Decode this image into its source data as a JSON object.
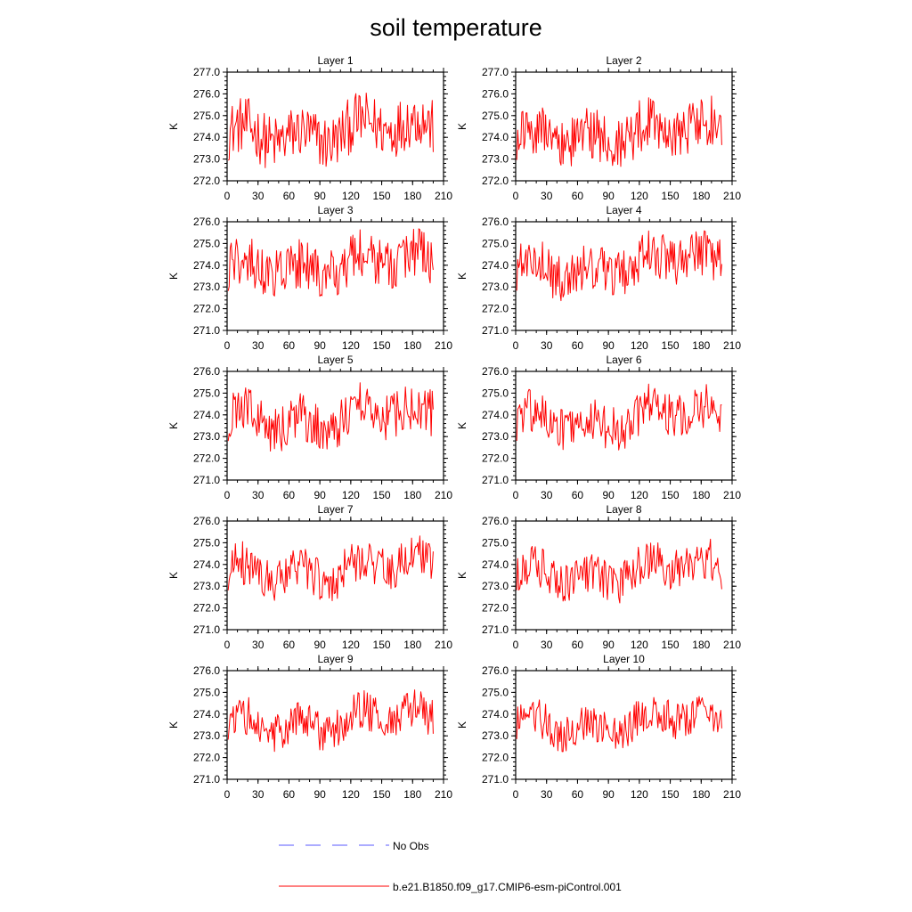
{
  "figure": {
    "title": "soil temperature",
    "legend": [
      {
        "label": "No Obs",
        "color": "#5a5aff",
        "style": "dashed"
      },
      {
        "label": "b.e21.B1850.f09_g17.CMIP6-esm-piControl.001",
        "color": "#ff0000",
        "style": "solid"
      }
    ]
  },
  "chart_data": [
    {
      "type": "line",
      "title": "Layer 1",
      "xlabel": "",
      "ylabel": "K",
      "xlim": [
        0,
        210
      ],
      "ylim": [
        272.0,
        277.0
      ],
      "xticks": [
        "0",
        "30",
        "60",
        "90",
        "120",
        "150",
        "180",
        "210"
      ],
      "yticks": [
        "272.0",
        "273.0",
        "274.0",
        "275.0",
        "276.0",
        "277.0"
      ],
      "series": [
        {
          "name": "b.e21.B1850.f09_g17.CMIP6-esm-piControl.001",
          "color": "#ff0000",
          "base": 273.95,
          "amp": 1.3,
          "trend": 0.6,
          "n": 200
        }
      ]
    },
    {
      "type": "line",
      "title": "Layer 2",
      "xlabel": "",
      "ylabel": "K",
      "xlim": [
        0,
        210
      ],
      "ylim": [
        272.0,
        277.0
      ],
      "xticks": [
        "0",
        "30",
        "60",
        "90",
        "120",
        "150",
        "180",
        "210"
      ],
      "yticks": [
        "272.0",
        "273.0",
        "274.0",
        "275.0",
        "276.0",
        "277.0"
      ],
      "series": [
        {
          "name": "b.e21.B1850.f09_g17.CMIP6-esm-piControl.001",
          "color": "#ff0000",
          "base": 273.9,
          "amp": 1.25,
          "trend": 0.6,
          "n": 200
        }
      ]
    },
    {
      "type": "line",
      "title": "Layer 3",
      "xlabel": "",
      "ylabel": "K",
      "xlim": [
        0,
        210
      ],
      "ylim": [
        271.0,
        276.0
      ],
      "xticks": [
        "0",
        "30",
        "60",
        "90",
        "120",
        "150",
        "180",
        "210"
      ],
      "yticks": [
        "271.0",
        "272.0",
        "273.0",
        "274.0",
        "275.0",
        "276.0"
      ],
      "series": [
        {
          "name": "b.e21.B1850.f09_g17.CMIP6-esm-piControl.001",
          "color": "#ff0000",
          "base": 273.7,
          "amp": 1.2,
          "trend": 0.6,
          "n": 200
        }
      ]
    },
    {
      "type": "line",
      "title": "Layer 4",
      "xlabel": "",
      "ylabel": "K",
      "xlim": [
        0,
        210
      ],
      "ylim": [
        271.0,
        276.0
      ],
      "xticks": [
        "0",
        "30",
        "60",
        "90",
        "120",
        "150",
        "180",
        "210"
      ],
      "yticks": [
        "271.0",
        "272.0",
        "273.0",
        "274.0",
        "275.0",
        "276.0"
      ],
      "series": [
        {
          "name": "b.e21.B1850.f09_g17.CMIP6-esm-piControl.001",
          "color": "#ff0000",
          "base": 273.65,
          "amp": 1.15,
          "trend": 0.6,
          "n": 200
        }
      ]
    },
    {
      "type": "line",
      "title": "Layer 5",
      "xlabel": "",
      "ylabel": "K",
      "xlim": [
        0,
        210
      ],
      "ylim": [
        271.0,
        276.0
      ],
      "xticks": [
        "0",
        "30",
        "60",
        "90",
        "120",
        "150",
        "180",
        "210"
      ],
      "yticks": [
        "271.0",
        "272.0",
        "273.0",
        "274.0",
        "275.0",
        "276.0"
      ],
      "series": [
        {
          "name": "b.e21.B1850.f09_g17.CMIP6-esm-piControl.001",
          "color": "#ff0000",
          "base": 273.55,
          "amp": 1.1,
          "trend": 0.6,
          "n": 200
        }
      ]
    },
    {
      "type": "line",
      "title": "Layer 6",
      "xlabel": "",
      "ylabel": "K",
      "xlim": [
        0,
        210
      ],
      "ylim": [
        271.0,
        276.0
      ],
      "xticks": [
        "0",
        "30",
        "60",
        "90",
        "120",
        "150",
        "180",
        "210"
      ],
      "yticks": [
        "271.0",
        "272.0",
        "273.0",
        "274.0",
        "275.0",
        "276.0"
      ],
      "series": [
        {
          "name": "b.e21.B1850.f09_g17.CMIP6-esm-piControl.001",
          "color": "#ff0000",
          "base": 273.5,
          "amp": 1.05,
          "trend": 0.6,
          "n": 200
        }
      ]
    },
    {
      "type": "line",
      "title": "Layer 7",
      "xlabel": "",
      "ylabel": "K",
      "xlim": [
        0,
        210
      ],
      "ylim": [
        271.0,
        276.0
      ],
      "xticks": [
        "0",
        "30",
        "60",
        "90",
        "120",
        "150",
        "180",
        "210"
      ],
      "yticks": [
        "271.0",
        "272.0",
        "273.0",
        "274.0",
        "275.0",
        "276.0"
      ],
      "series": [
        {
          "name": "b.e21.B1850.f09_g17.CMIP6-esm-piControl.001",
          "color": "#ff0000",
          "base": 273.45,
          "amp": 1.0,
          "trend": 0.55,
          "n": 200
        }
      ]
    },
    {
      "type": "line",
      "title": "Layer 8",
      "xlabel": "",
      "ylabel": "K",
      "xlim": [
        0,
        210
      ],
      "ylim": [
        271.0,
        276.0
      ],
      "xticks": [
        "0",
        "30",
        "60",
        "90",
        "120",
        "150",
        "180",
        "210"
      ],
      "yticks": [
        "271.0",
        "272.0",
        "273.0",
        "274.0",
        "275.0",
        "276.0"
      ],
      "series": [
        {
          "name": "b.e21.B1850.f09_g17.CMIP6-esm-piControl.001",
          "color": "#ff0000",
          "base": 273.4,
          "amp": 0.95,
          "trend": 0.55,
          "n": 200
        }
      ]
    },
    {
      "type": "line",
      "title": "Layer 9",
      "xlabel": "",
      "ylabel": "K",
      "xlim": [
        0,
        210
      ],
      "ylim": [
        271.0,
        276.0
      ],
      "xticks": [
        "0",
        "30",
        "60",
        "90",
        "120",
        "150",
        "180",
        "210"
      ],
      "yticks": [
        "271.0",
        "272.0",
        "273.0",
        "274.0",
        "275.0",
        "276.0"
      ],
      "series": [
        {
          "name": "b.e21.B1850.f09_g17.CMIP6-esm-piControl.001",
          "color": "#ff0000",
          "base": 273.35,
          "amp": 0.9,
          "trend": 0.55,
          "n": 200
        }
      ]
    },
    {
      "type": "line",
      "title": "Layer 10",
      "xlabel": "",
      "ylabel": "K",
      "xlim": [
        0,
        210
      ],
      "ylim": [
        271.0,
        276.0
      ],
      "xticks": [
        "0",
        "30",
        "60",
        "90",
        "120",
        "150",
        "180",
        "210"
      ],
      "yticks": [
        "271.0",
        "272.0",
        "273.0",
        "274.0",
        "275.0",
        "276.0"
      ],
      "series": [
        {
          "name": "b.e21.B1850.f09_g17.CMIP6-esm-piControl.001",
          "color": "#ff0000",
          "base": 273.35,
          "amp": 0.88,
          "trend": 0.55,
          "n": 200
        }
      ]
    }
  ]
}
